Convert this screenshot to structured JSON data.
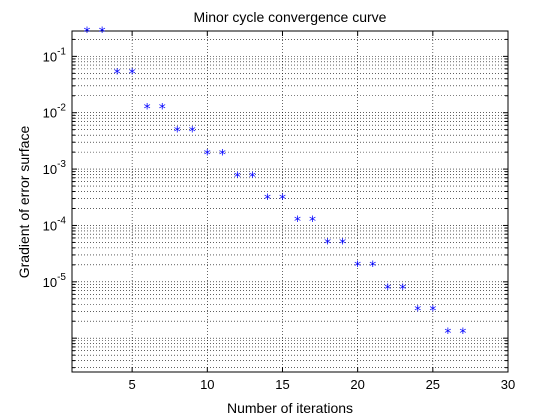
{
  "chart_data": {
    "type": "scatter",
    "title": "Minor cycle convergence curve",
    "xlabel": "Number of iterations",
    "ylabel": "Gradient of error surface",
    "xlim": [
      1,
      30
    ],
    "ylim_log10": [
      -6.6,
      -0.55
    ],
    "yscale": "log",
    "grid": true,
    "marker": "*",
    "color": "#0000ff",
    "xticks": [
      5,
      10,
      15,
      20,
      25,
      30
    ],
    "yticks": [
      {
        "exp": -1,
        "label": "10",
        "sup": "-1"
      },
      {
        "exp": -2,
        "label": "10",
        "sup": "-2"
      },
      {
        "exp": -3,
        "label": "10",
        "sup": "-3"
      },
      {
        "exp": -4,
        "label": "10",
        "sup": "-4"
      },
      {
        "exp": -5,
        "label": "10",
        "sup": "-5"
      }
    ],
    "x": [
      2,
      3,
      4,
      5,
      6,
      7,
      8,
      9,
      10,
      11,
      12,
      13,
      14,
      15,
      16,
      17,
      18,
      19,
      20,
      21,
      22,
      23,
      24,
      25,
      26,
      27
    ],
    "y": [
      0.28,
      0.28,
      0.052,
      0.052,
      0.0125,
      0.0125,
      0.0048,
      0.0048,
      0.0019,
      0.0019,
      0.00075,
      0.00075,
      0.00031,
      0.00031,
      0.000125,
      0.000125,
      5e-05,
      5e-05,
      2e-05,
      2e-05,
      7.8e-06,
      7.8e-06,
      3.2e-06,
      3.2e-06,
      1.3e-06,
      1.3e-06
    ]
  }
}
